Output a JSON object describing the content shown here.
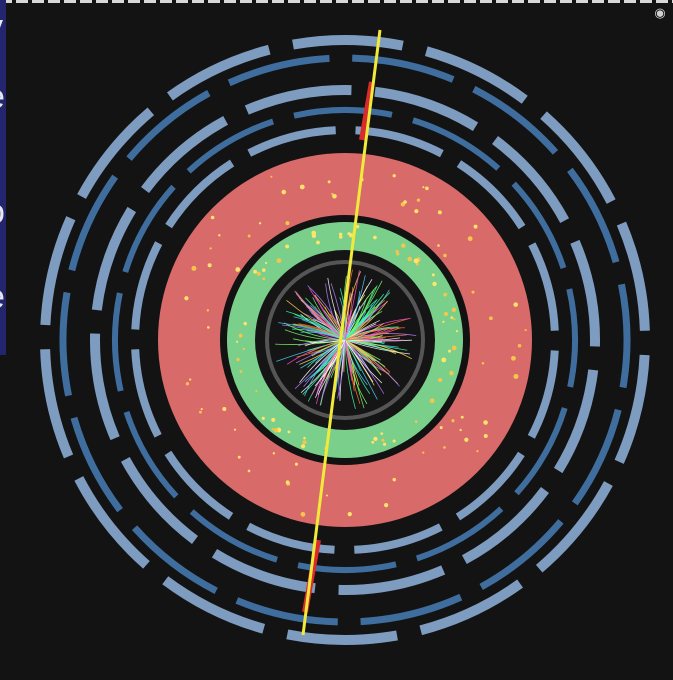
{
  "image": {
    "kind": "particle collision event display (cross-section view)",
    "background_color": "#131313"
  },
  "detector": {
    "outer_ring_color": "#7e9cc0",
    "outer_ring_inner_color": "#3f6e9e",
    "calorimeter_hadronic_color": "#d96a6a",
    "calorimeter_em_color": "#7ad08a",
    "tracker_color": "#1b1b1b"
  },
  "tracks": {
    "muon_track_color": "#f2ea3a",
    "muon_hit_color": "#d92b2b",
    "inner_track_colors": [
      "#ff4fd8",
      "#4fd0ff",
      "#7cff6a",
      "#ffd34f",
      "#ff7a3a",
      "#b07cff",
      "#ffffff",
      "#3aff9e"
    ]
  },
  "slide_fragment": {
    "letters": [
      "y",
      "e",
      "o",
      "e"
    ]
  },
  "icons": {
    "corner": "eye-icon"
  }
}
